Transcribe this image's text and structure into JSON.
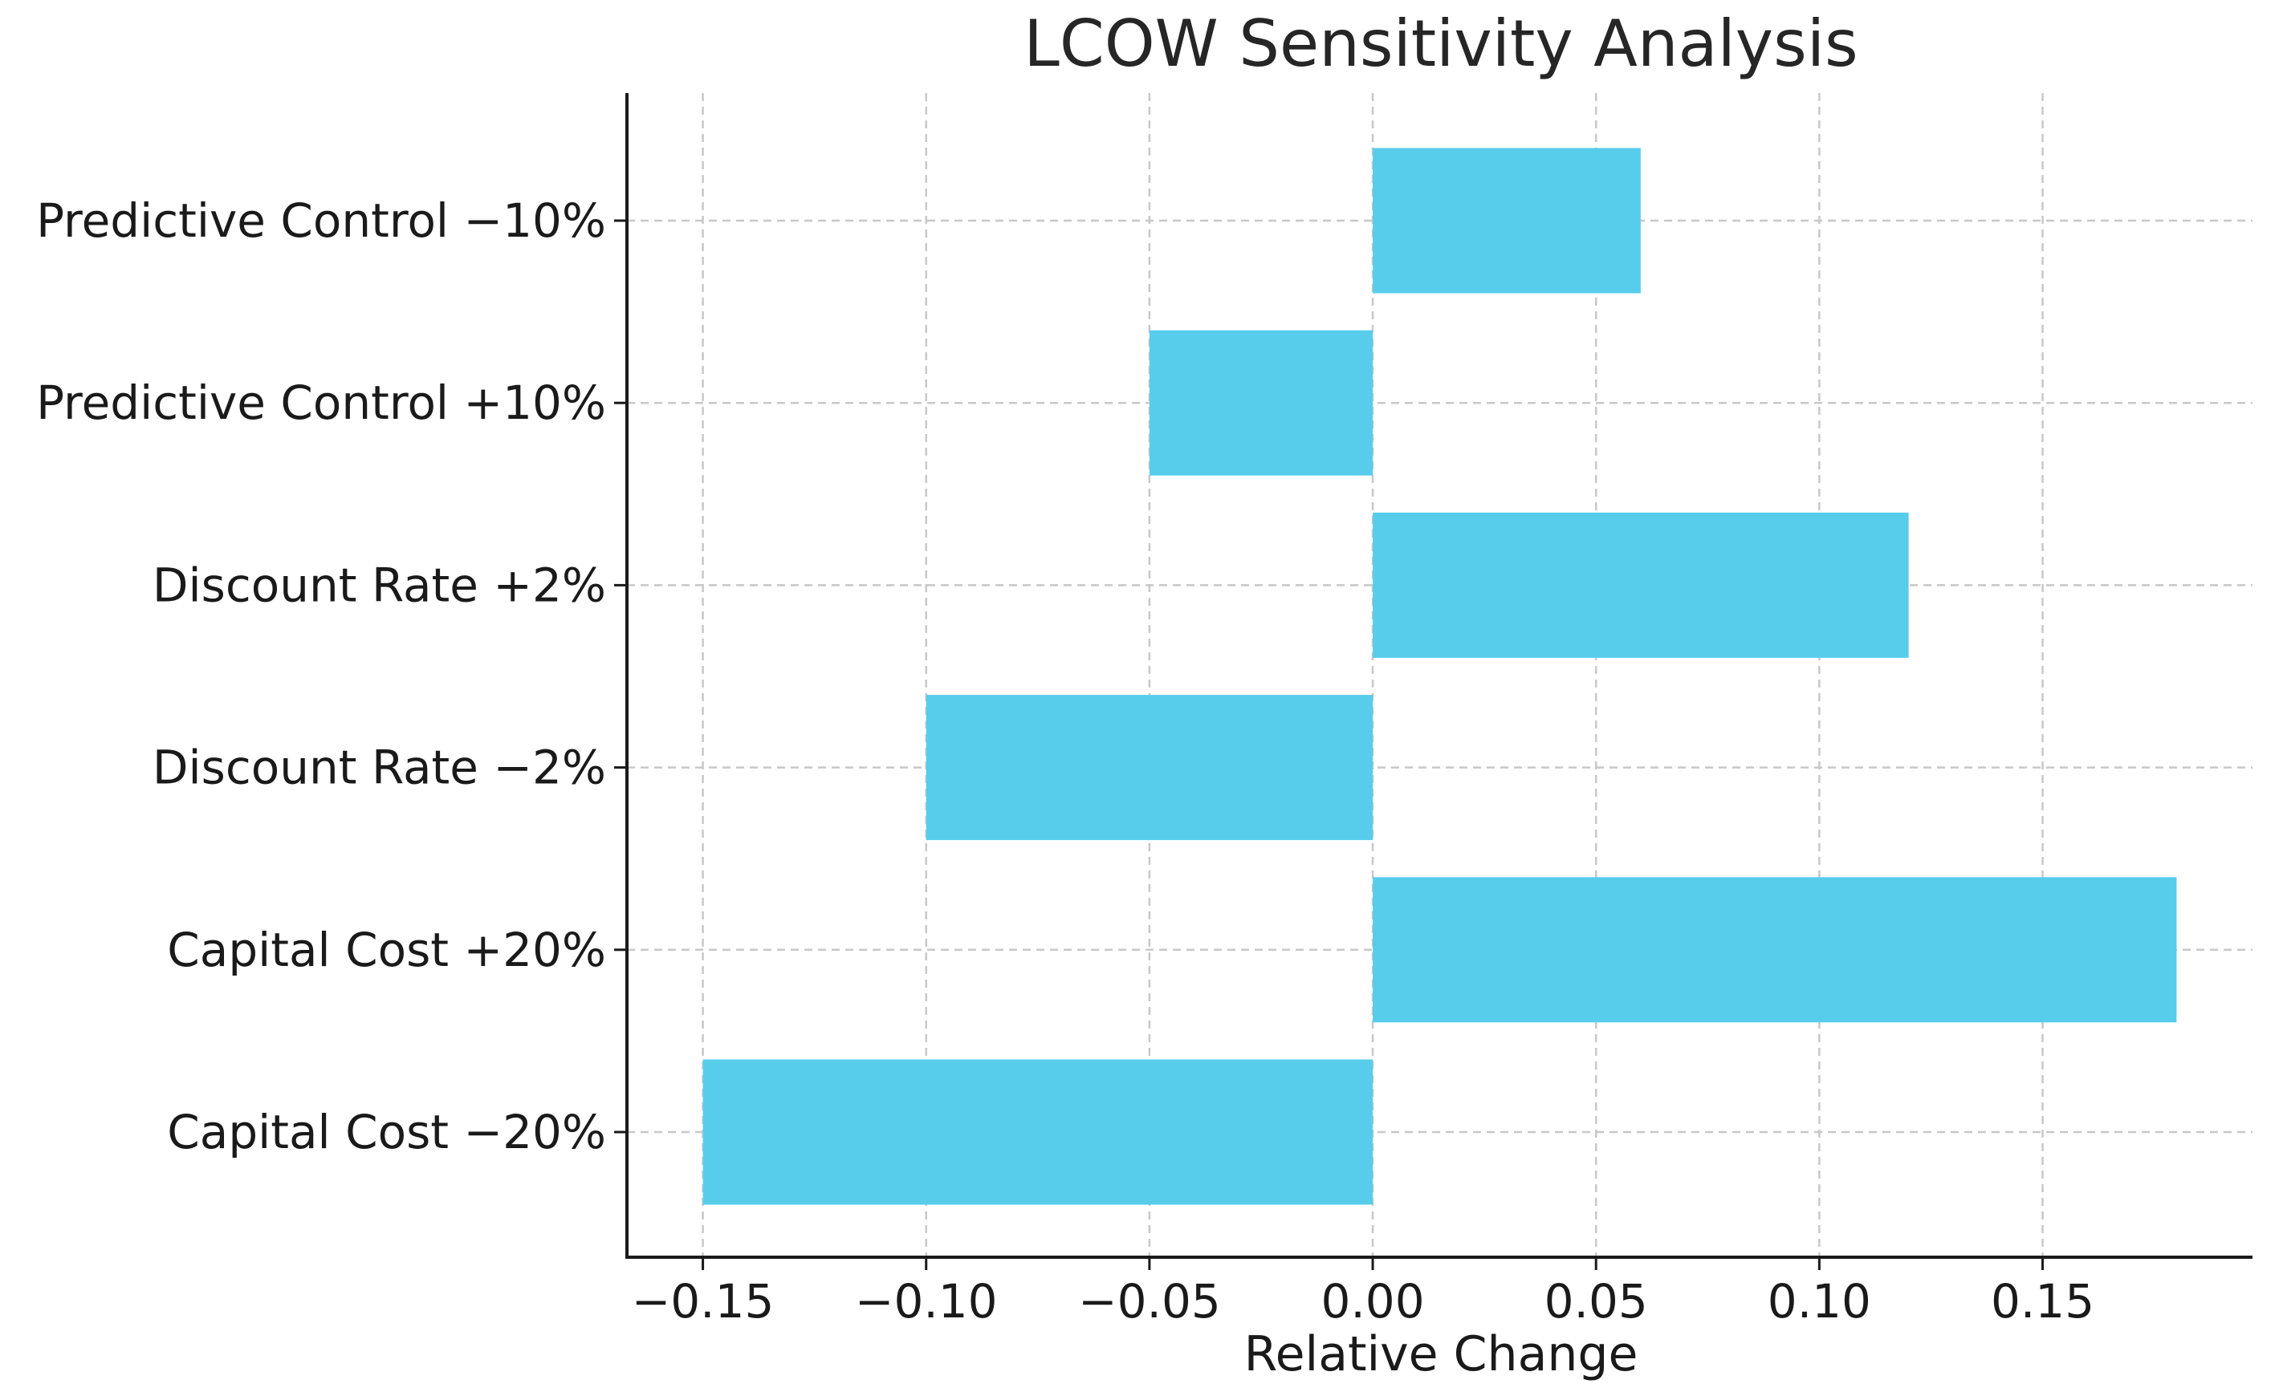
{
  "chart_data": {
    "type": "bar",
    "orientation": "horizontal",
    "title": "LCOW Sensitivity Analysis",
    "xlabel": "Relative Change",
    "ylabel": "",
    "categories": [
      "Capital Cost −20%",
      "Capital Cost +20%",
      "Discount Rate −2%",
      "Discount Rate +2%",
      "Predictive Control +10%",
      "Predictive Control −10%"
    ],
    "values": [
      -0.15,
      0.18,
      -0.1,
      0.12,
      -0.05,
      0.06
    ],
    "xlim": [
      -0.167,
      0.197
    ],
    "xticks": [
      -0.15,
      -0.1,
      -0.05,
      0.0,
      0.05,
      0.1,
      0.15
    ],
    "xtick_labels": [
      "−0.15",
      "−0.10",
      "−0.05",
      "0.00",
      "0.05",
      "0.10",
      "0.15"
    ],
    "grid": true,
    "bar_color": "#57cdeb"
  }
}
